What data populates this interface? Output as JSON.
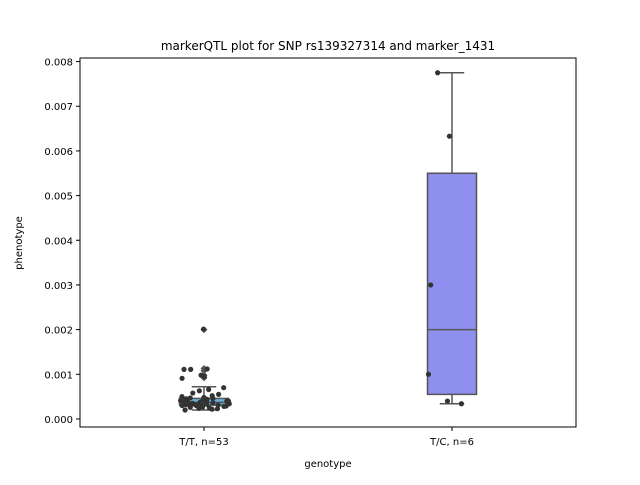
{
  "chart_data": {
    "type": "box",
    "title": "markerQTL plot for SNP rs139327314 and marker_1431",
    "xlabel": "genotype",
    "ylabel": "phenotype",
    "categories": [
      "T/T, n=53",
      "T/C, n=6"
    ],
    "ylim": [
      -0.00018,
      0.00808
    ],
    "yticks": [
      0.0,
      0.001,
      0.002,
      0.003,
      0.004,
      0.005,
      0.006,
      0.007,
      0.008
    ],
    "ytick_labels": [
      "0.000",
      "0.001",
      "0.002",
      "0.003",
      "0.004",
      "0.005",
      "0.006",
      "0.007",
      "0.008"
    ],
    "grid": false,
    "legend": "none",
    "colors": {
      "box_tt": "#66b3e0",
      "box_tc": "#8f8ff0",
      "box_edge": "#555555",
      "points": "#333333",
      "outlier": "#555555"
    },
    "boxes": [
      {
        "category": "T/T, n=53",
        "q1": 0.00031,
        "median": 0.00037,
        "q3": 0.00046,
        "whisker_low": 0.0002,
        "whisker_high": 0.00072,
        "outliers": [
          0.00092,
          0.00098,
          0.00108,
          0.00113,
          0.002
        ]
      },
      {
        "category": "T/C, n=6",
        "q1": 0.00055,
        "median": 0.002,
        "q3": 0.0055,
        "whisker_low": 0.00034,
        "whisker_high": 0.00775,
        "outliers": []
      }
    ],
    "points": [
      {
        "category": "T/T, n=53",
        "values": [
          0.00201,
          0.00112,
          0.00111,
          0.00111,
          0.00098,
          0.00095,
          0.00091,
          0.0007,
          0.00066,
          0.00063,
          0.00058,
          0.00055,
          0.00052,
          0.0005,
          0.00048,
          0.00047,
          0.00046,
          0.00045,
          0.00044,
          0.00043,
          0.00042,
          0.00041,
          0.0004,
          0.0004,
          0.00039,
          0.00038,
          0.00038,
          0.00037,
          0.00037,
          0.00036,
          0.00036,
          0.00035,
          0.00035,
          0.00034,
          0.00034,
          0.00033,
          0.00033,
          0.00032,
          0.00032,
          0.00031,
          0.00031,
          0.0003,
          0.0003,
          0.00029,
          0.00029,
          0.00028,
          0.00027,
          0.00026,
          0.00025,
          0.00024,
          0.00023,
          0.00022,
          0.0002
        ]
      },
      {
        "category": "T/C, n=6",
        "values": [
          0.00775,
          0.00633,
          0.003,
          0.001,
          0.0004,
          0.00034
        ]
      }
    ]
  }
}
